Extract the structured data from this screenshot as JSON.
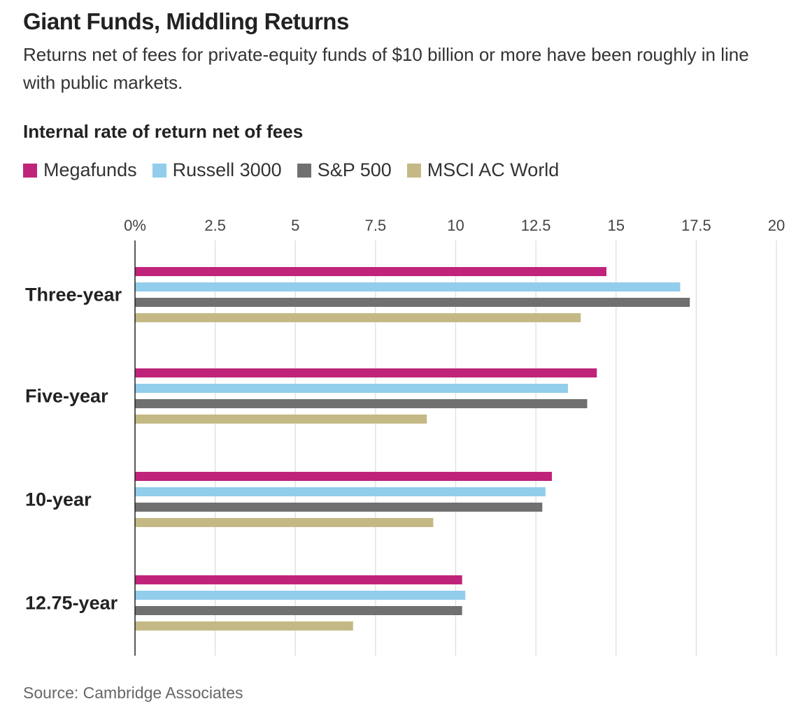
{
  "header": {
    "title": "Giant Funds, Middling Returns",
    "subtitle": "Returns net of fees for private-equity funds of $10 billion or more have been roughly in line with public markets.",
    "ylabel": "Internal rate of return net of fees"
  },
  "legend": [
    {
      "label": "Megafunds",
      "color": "#c0247a"
    },
    {
      "label": "Russell 3000",
      "color": "#92cdec"
    },
    {
      "label": "S&P 500",
      "color": "#707070"
    },
    {
      "label": "MSCI AC World",
      "color": "#c4b985"
    }
  ],
  "chart_data": {
    "type": "bar",
    "orientation": "horizontal",
    "categories": [
      "Three-year",
      "Five-year",
      "10-year",
      "12.75-year"
    ],
    "series": [
      {
        "name": "Megafunds",
        "color": "#c0247a",
        "values": [
          14.7,
          14.4,
          13.0,
          10.2
        ]
      },
      {
        "name": "Russell 3000",
        "color": "#92cdec",
        "values": [
          17.0,
          13.5,
          12.8,
          10.3
        ]
      },
      {
        "name": "S&P 500",
        "color": "#707070",
        "values": [
          17.3,
          14.1,
          12.7,
          10.2
        ]
      },
      {
        "name": "MSCI AC World",
        "color": "#c4b985",
        "values": [
          13.9,
          9.1,
          9.3,
          6.8
        ]
      }
    ],
    "xlim": [
      0,
      20
    ],
    "xticks": [
      0,
      2.5,
      5,
      7.5,
      10,
      12.5,
      15,
      17.5,
      20
    ],
    "xtick_labels": [
      "0%",
      "2.5",
      "5",
      "7.5",
      "10",
      "12.5",
      "15",
      "17.5",
      "20"
    ],
    "grid": true,
    "legend_position": "top-left"
  },
  "footer": {
    "source": "Source: Cambridge Associates"
  }
}
